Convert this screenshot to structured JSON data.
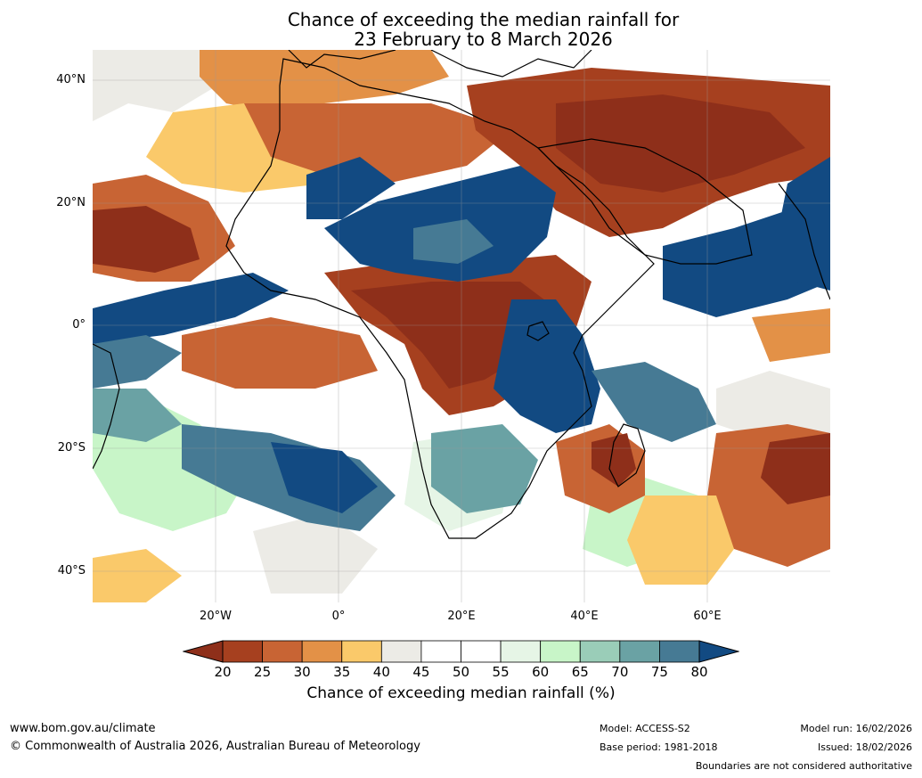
{
  "title": {
    "line1": "Chance of exceeding the median rainfall for",
    "line2": "23 February to 8 March 2026"
  },
  "map": {
    "lat_ticks": [
      "40°N",
      "20°N",
      "0°",
      "20°S",
      "40°S"
    ],
    "lon_ticks": [
      "20°W",
      "0°",
      "20°E",
      "40°E",
      "60°E"
    ],
    "palette": {
      "le20": "#8e2f1a",
      "20-25": "#a6401f",
      "25-30": "#c86434",
      "30-35": "#e39147",
      "35-40": "#fac96a",
      "40-45": "#ecebe6",
      "45-55": "#ffffff",
      "55-60": "#e6f5e6",
      "60-65": "#c8f5c8",
      "65-70": "#9acdb8",
      "70-75": "#6aa2a4",
      "75-80": "#467a94",
      "ge80": "#124a82"
    }
  },
  "colorbar": {
    "labels": [
      "20",
      "25",
      "30",
      "35",
      "40",
      "45",
      "50",
      "55",
      "60",
      "65",
      "70",
      "75",
      "80"
    ],
    "colors": [
      "#a6401f",
      "#c86434",
      "#e39147",
      "#fac96a",
      "#ecebe6",
      "#ffffff",
      "#ffffff",
      "#e6f5e6",
      "#c8f5c8",
      "#9acdb8",
      "#6aa2a4",
      "#467a94"
    ],
    "under_color": "#8e2f1a",
    "over_color": "#124a82",
    "title": "Chance of exceeding median rainfall (%)"
  },
  "footer": {
    "website": "www.bom.gov.au/climate",
    "copyright": "© Commonwealth of Australia 2026, Australian Bureau of Meteorology",
    "model": "Model: ACCESS-S2",
    "base_period": "Base period: 1981-2018",
    "model_run": "Model run: 16/02/2026",
    "issued": "Issued: 18/02/2026",
    "disclaimer": "Boundaries are not considered authoritative"
  }
}
